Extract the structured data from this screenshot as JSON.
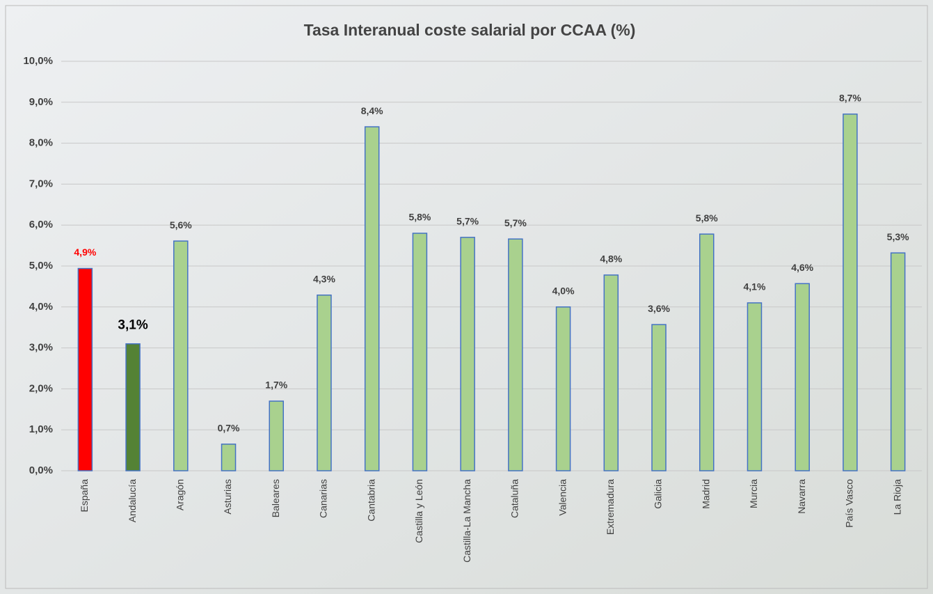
{
  "chart_data": {
    "type": "bar",
    "title": "Tasa Interanual coste salarial por CCAA (%)",
    "categories": [
      "España",
      "Andalucía",
      "Aragón",
      "Asturias",
      "Baleares",
      "Canarias",
      "Cantabria",
      "Castilla y León",
      "Castilla-La Mancha",
      "Cataluña",
      "Valencia",
      "Extremadura",
      "Galicia",
      "Madrid",
      "Murcia",
      "Navarra",
      "País Vasco",
      "La Rioja"
    ],
    "values": [
      4.94,
      3.1,
      5.61,
      0.65,
      1.7,
      4.29,
      8.4,
      5.8,
      5.7,
      5.66,
      4.0,
      4.78,
      3.57,
      5.78,
      4.1,
      4.57,
      8.71,
      5.32
    ],
    "value_labels": [
      "4,9%",
      "3,1%",
      "5,6%",
      "0,7%",
      "1,7%",
      "4,3%",
      "8,4%",
      "5,8%",
      "5,7%",
      "5,7%",
      "4,0%",
      "4,8%",
      "3,6%",
      "5,8%",
      "4,1%",
      "4,6%",
      "8,7%",
      "5,3%"
    ],
    "colors": [
      "#ff0000",
      "#548235",
      "#a9d18e",
      "#a9d18e",
      "#a9d18e",
      "#a9d18e",
      "#a9d18e",
      "#a9d18e",
      "#a9d18e",
      "#a9d18e",
      "#a9d18e",
      "#a9d18e",
      "#a9d18e",
      "#a9d18e",
      "#a9d18e",
      "#a9d18e",
      "#a9d18e",
      "#a9d18e"
    ],
    "value_label_colors": [
      "#ff0000",
      "#000000",
      "#404040",
      "#404040",
      "#404040",
      "#404040",
      "#404040",
      "#404040",
      "#404040",
      "#404040",
      "#404040",
      "#404040",
      "#404040",
      "#404040",
      "#404040",
      "#404040",
      "#404040",
      "#404040"
    ],
    "ylim": [
      0,
      10
    ],
    "yticks": [
      {
        "value": 0,
        "label": "0,0%"
      },
      {
        "value": 1,
        "label": "1,0%"
      },
      {
        "value": 2,
        "label": "2,0%"
      },
      {
        "value": 3,
        "label": "3,0%"
      },
      {
        "value": 4,
        "label": "4,0%"
      },
      {
        "value": 5,
        "label": "5,0%"
      },
      {
        "value": 6,
        "label": "6,0%"
      },
      {
        "value": 7,
        "label": "7,0%"
      },
      {
        "value": 8,
        "label": "8,0%"
      },
      {
        "value": 9,
        "label": "9,0%"
      },
      {
        "value": 10,
        "label": "10,0%"
      }
    ],
    "grid": true
  }
}
